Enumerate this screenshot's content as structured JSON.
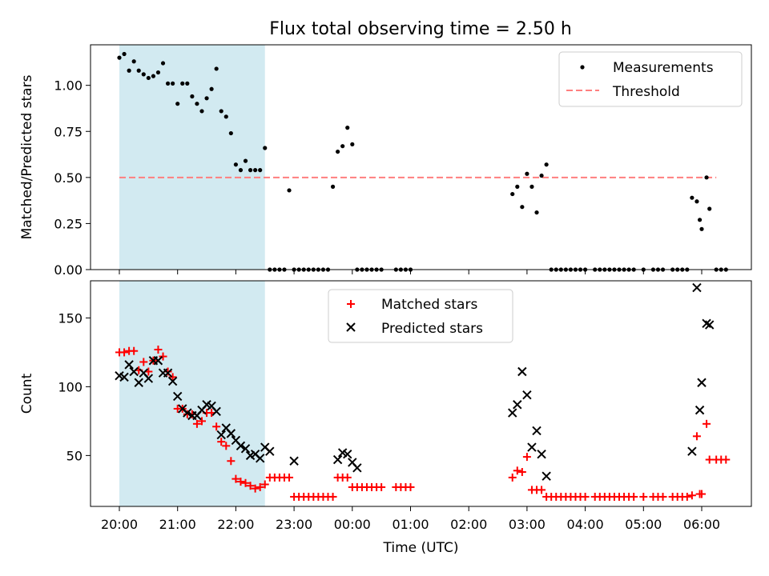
{
  "chart_data": [
    {
      "type": "scatter",
      "title": "Flux total observing time = 2.50 h",
      "xlabel": "",
      "ylabel": "Matched/Predicted stars",
      "ylim": [
        0,
        1.22
      ],
      "yticks": [
        "0.00",
        "0.25",
        "0.50",
        "0.75",
        "1.00"
      ],
      "shaded_range": {
        "from": "20:00",
        "to": "22:30",
        "color": "#add8e6"
      },
      "threshold": {
        "name": "Threshold",
        "value": 0.5,
        "from": "20:00",
        "to": "06:15",
        "color": "#ff7f7f",
        "style": "dashed"
      },
      "legend_position": "top-right",
      "series": [
        {
          "name": "Measurements",
          "color": "#000000",
          "points": [
            [
              "20:00",
              1.15
            ],
            [
              "20:05",
              1.17
            ],
            [
              "20:10",
              1.08
            ],
            [
              "20:15",
              1.13
            ],
            [
              "20:20",
              1.08
            ],
            [
              "20:25",
              1.06
            ],
            [
              "20:30",
              1.04
            ],
            [
              "20:35",
              1.05
            ],
            [
              "20:40",
              1.07
            ],
            [
              "20:45",
              1.12
            ],
            [
              "20:50",
              1.01
            ],
            [
              "20:55",
              1.01
            ],
            [
              "21:00",
              0.9
            ],
            [
              "21:05",
              1.01
            ],
            [
              "21:10",
              1.01
            ],
            [
              "21:15",
              0.94
            ],
            [
              "21:20",
              0.9
            ],
            [
              "21:25",
              0.86
            ],
            [
              "21:30",
              0.93
            ],
            [
              "21:35",
              0.98
            ],
            [
              "21:40",
              1.09
            ],
            [
              "21:45",
              0.86
            ],
            [
              "21:50",
              0.83
            ],
            [
              "21:55",
              0.74
            ],
            [
              "22:00",
              0.57
            ],
            [
              "22:05",
              0.54
            ],
            [
              "22:10",
              0.59
            ],
            [
              "22:15",
              0.54
            ],
            [
              "22:20",
              0.54
            ],
            [
              "22:25",
              0.54
            ],
            [
              "22:30",
              0.66
            ],
            [
              "22:35",
              0
            ],
            [
              "22:40",
              0
            ],
            [
              "22:45",
              0
            ],
            [
              "22:50",
              0
            ],
            [
              "22:55",
              0.43
            ],
            [
              "23:00",
              0
            ],
            [
              "23:05",
              0
            ],
            [
              "23:10",
              0
            ],
            [
              "23:15",
              0
            ],
            [
              "23:20",
              0
            ],
            [
              "23:25",
              0
            ],
            [
              "23:30",
              0
            ],
            [
              "23:35",
              0
            ],
            [
              "23:40",
              0.45
            ],
            [
              "23:45",
              0.64
            ],
            [
              "23:50",
              0.67
            ],
            [
              "23:55",
              0.77
            ],
            [
              "00:00",
              0.68
            ],
            [
              "00:05",
              0
            ],
            [
              "00:10",
              0
            ],
            [
              "00:15",
              0
            ],
            [
              "00:20",
              0
            ],
            [
              "00:25",
              0
            ],
            [
              "00:30",
              0
            ],
            [
              "00:45",
              0
            ],
            [
              "00:50",
              0
            ],
            [
              "00:55",
              0
            ],
            [
              "01:00",
              0
            ],
            [
              "02:45",
              0.41
            ],
            [
              "02:50",
              0.45
            ],
            [
              "02:55",
              0.34
            ],
            [
              "03:00",
              0.52
            ],
            [
              "03:05",
              0.45
            ],
            [
              "03:10",
              0.31
            ],
            [
              "03:15",
              0.51
            ],
            [
              "03:20",
              0.57
            ],
            [
              "03:25",
              0
            ],
            [
              "03:30",
              0
            ],
            [
              "03:35",
              0
            ],
            [
              "03:40",
              0
            ],
            [
              "03:45",
              0
            ],
            [
              "03:50",
              0
            ],
            [
              "03:55",
              0
            ],
            [
              "04:00",
              0
            ],
            [
              "04:10",
              0
            ],
            [
              "04:15",
              0
            ],
            [
              "04:20",
              0
            ],
            [
              "04:25",
              0
            ],
            [
              "04:30",
              0
            ],
            [
              "04:35",
              0
            ],
            [
              "04:40",
              0
            ],
            [
              "04:45",
              0
            ],
            [
              "04:50",
              0
            ],
            [
              "05:00",
              0
            ],
            [
              "05:10",
              0
            ],
            [
              "05:15",
              0
            ],
            [
              "05:20",
              0
            ],
            [
              "05:30",
              0
            ],
            [
              "05:35",
              0
            ],
            [
              "05:40",
              0
            ],
            [
              "05:45",
              0
            ],
            [
              "05:50",
              0.39
            ],
            [
              "05:55",
              0.37
            ],
            [
              "05:58",
              0.27
            ],
            [
              "06:00",
              0.22
            ],
            [
              "06:05",
              0.5
            ],
            [
              "06:08",
              0.33
            ],
            [
              "06:15",
              0
            ],
            [
              "06:20",
              0
            ],
            [
              "06:25",
              0
            ]
          ]
        }
      ]
    },
    {
      "type": "scatter",
      "title": "",
      "xlabel": "Time (UTC)",
      "ylabel": "Count",
      "ylim": [
        13,
        177
      ],
      "yticks": [
        "50",
        "100",
        "150"
      ],
      "xticks": [
        "20:00",
        "21:00",
        "22:00",
        "23:00",
        "00:00",
        "01:00",
        "02:00",
        "03:00",
        "04:00",
        "05:00",
        "06:00"
      ],
      "shaded_range": {
        "from": "20:00",
        "to": "22:30",
        "color": "#add8e6"
      },
      "legend_position": "top-center",
      "series": [
        {
          "name": "Matched stars",
          "marker": "+",
          "color": "#ff0000",
          "points": [
            [
              "20:00",
              125
            ],
            [
              "20:05",
              125
            ],
            [
              "20:10",
              126
            ],
            [
              "20:15",
              126
            ],
            [
              "20:20",
              112
            ],
            [
              "20:25",
              118
            ],
            [
              "20:30",
              111
            ],
            [
              "20:35",
              119
            ],
            [
              "20:40",
              127
            ],
            [
              "20:45",
              122
            ],
            [
              "20:50",
              111
            ],
            [
              "20:55",
              107
            ],
            [
              "21:00",
              84
            ],
            [
              "21:05",
              84
            ],
            [
              "21:10",
              80
            ],
            [
              "21:15",
              80
            ],
            [
              "21:20",
              73
            ],
            [
              "21:25",
              75
            ],
            [
              "21:30",
              81
            ],
            [
              "21:35",
              81
            ],
            [
              "21:40",
              71
            ],
            [
              "21:45",
              60
            ],
            [
              "21:50",
              57
            ],
            [
              "21:55",
              46
            ],
            [
              "22:00",
              33
            ],
            [
              "22:05",
              31
            ],
            [
              "22:10",
              30
            ],
            [
              "22:15",
              28
            ],
            [
              "22:20",
              26
            ],
            [
              "22:25",
              27
            ],
            [
              "22:30",
              29
            ],
            [
              "22:35",
              34
            ],
            [
              "22:40",
              34
            ],
            [
              "22:45",
              34
            ],
            [
              "22:50",
              34
            ],
            [
              "22:55",
              34
            ],
            [
              "23:00",
              20
            ],
            [
              "23:05",
              20
            ],
            [
              "23:10",
              20
            ],
            [
              "23:15",
              20
            ],
            [
              "23:20",
              20
            ],
            [
              "23:25",
              20
            ],
            [
              "23:30",
              20
            ],
            [
              "23:35",
              20
            ],
            [
              "23:40",
              20
            ],
            [
              "23:45",
              34
            ],
            [
              "23:50",
              34
            ],
            [
              "23:55",
              34
            ],
            [
              "00:00",
              27
            ],
            [
              "00:05",
              27
            ],
            [
              "00:10",
              27
            ],
            [
              "00:15",
              27
            ],
            [
              "00:20",
              27
            ],
            [
              "00:25",
              27
            ],
            [
              "00:30",
              27
            ],
            [
              "00:45",
              27
            ],
            [
              "00:50",
              27
            ],
            [
              "00:55",
              27
            ],
            [
              "01:00",
              27
            ],
            [
              "02:45",
              34
            ],
            [
              "02:50",
              39
            ],
            [
              "02:55",
              38
            ],
            [
              "03:00",
              49
            ],
            [
              "03:05",
              25
            ],
            [
              "03:10",
              25
            ],
            [
              "03:15",
              25
            ],
            [
              "03:20",
              20
            ],
            [
              "03:25",
              20
            ],
            [
              "03:30",
              20
            ],
            [
              "03:35",
              20
            ],
            [
              "03:40",
              20
            ],
            [
              "03:45",
              20
            ],
            [
              "03:50",
              20
            ],
            [
              "03:55",
              20
            ],
            [
              "04:00",
              20
            ],
            [
              "04:10",
              20
            ],
            [
              "04:15",
              20
            ],
            [
              "04:20",
              20
            ],
            [
              "04:25",
              20
            ],
            [
              "04:30",
              20
            ],
            [
              "04:35",
              20
            ],
            [
              "04:40",
              20
            ],
            [
              "04:45",
              20
            ],
            [
              "04:50",
              20
            ],
            [
              "05:00",
              20
            ],
            [
              "05:10",
              20
            ],
            [
              "05:15",
              20
            ],
            [
              "05:20",
              20
            ],
            [
              "05:30",
              20
            ],
            [
              "05:35",
              20
            ],
            [
              "05:40",
              20
            ],
            [
              "05:45",
              20
            ],
            [
              "05:50",
              21
            ],
            [
              "05:55",
              64
            ],
            [
              "05:58",
              22
            ],
            [
              "06:00",
              22
            ],
            [
              "06:05",
              73
            ],
            [
              "06:08",
              47
            ],
            [
              "06:15",
              47
            ],
            [
              "06:20",
              47
            ],
            [
              "06:25",
              47
            ]
          ]
        },
        {
          "name": "Predicted stars",
          "marker": "x",
          "color": "#000000",
          "points": [
            [
              "20:00",
              108
            ],
            [
              "20:05",
              107
            ],
            [
              "20:10",
              116
            ],
            [
              "20:15",
              111
            ],
            [
              "20:20",
              103
            ],
            [
              "20:25",
              110
            ],
            [
              "20:30",
              106
            ],
            [
              "20:35",
              119
            ],
            [
              "20:40",
              119
            ],
            [
              "20:45",
              110
            ],
            [
              "20:50",
              110
            ],
            [
              "20:55",
              104
            ],
            [
              "21:00",
              93
            ],
            [
              "21:05",
              84
            ],
            [
              "21:10",
              81
            ],
            [
              "21:15",
              79
            ],
            [
              "21:20",
              79
            ],
            [
              "21:25",
              83
            ],
            [
              "21:30",
              87
            ],
            [
              "21:35",
              86
            ],
            [
              "21:40",
              82
            ],
            [
              "21:45",
              65
            ],
            [
              "21:50",
              70
            ],
            [
              "21:55",
              66
            ],
            [
              "22:00",
              61
            ],
            [
              "22:05",
              57
            ],
            [
              "22:10",
              55
            ],
            [
              "22:15",
              50
            ],
            [
              "22:20",
              51
            ],
            [
              "22:25",
              48
            ],
            [
              "22:30",
              56
            ],
            [
              "22:35",
              53
            ],
            [
              "23:00",
              46
            ],
            [
              "23:45",
              47
            ],
            [
              "23:50",
              52
            ],
            [
              "23:55",
              51
            ],
            [
              "00:00",
              45
            ],
            [
              "00:05",
              41
            ],
            [
              "02:45",
              81
            ],
            [
              "02:50",
              87
            ],
            [
              "02:55",
              111
            ],
            [
              "03:00",
              94
            ],
            [
              "03:05",
              56
            ],
            [
              "03:10",
              68
            ],
            [
              "03:15",
              51
            ],
            [
              "03:20",
              35
            ],
            [
              "05:50",
              53
            ],
            [
              "05:55",
              172
            ],
            [
              "05:58",
              83
            ],
            [
              "06:00",
              103
            ],
            [
              "06:05",
              146
            ],
            [
              "06:08",
              145
            ]
          ]
        }
      ]
    }
  ]
}
